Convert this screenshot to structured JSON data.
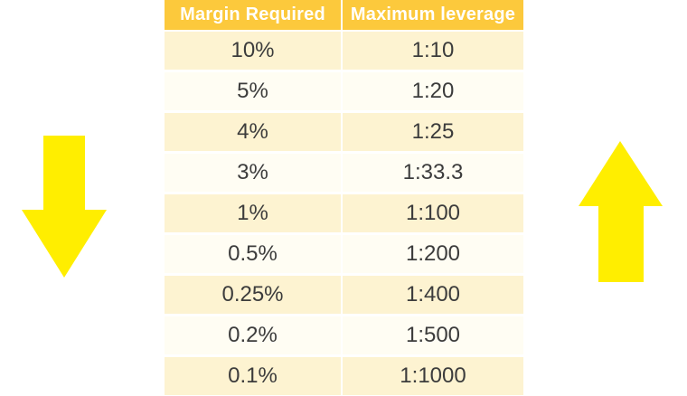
{
  "chart_data": {
    "type": "table",
    "headers": [
      "Margin Required",
      "Maximum leverage"
    ],
    "rows": [
      [
        "10%",
        "1:10"
      ],
      [
        "5%",
        "1:20"
      ],
      [
        "4%",
        "1:25"
      ],
      [
        "3%",
        "1:33.3"
      ],
      [
        "1%",
        "1:100"
      ],
      [
        "0.5%",
        "1:200"
      ],
      [
        "0.25%",
        "1:400"
      ],
      [
        "0.2%",
        "1:500"
      ],
      [
        "0.1%",
        "1:1000"
      ]
    ],
    "layout_hints": {
      "header_style": "gold band, white bold text",
      "row_striping": "odd rows pale yellow, even rows near-white",
      "annotations": [
        "down-arrow left of table",
        "up-arrow right of table"
      ]
    }
  },
  "icons": {
    "left": "down-arrow",
    "right": "up-arrow"
  },
  "colors": {
    "header_bg": "#fcc93c",
    "header_text": "#ffffff",
    "row_odd_bg": "#fdf3d1",
    "row_even_bg": "#fffdf3",
    "cell_text": "#3c3c3c",
    "arrow_fill": "#ffee00",
    "background": "#ffffff"
  }
}
